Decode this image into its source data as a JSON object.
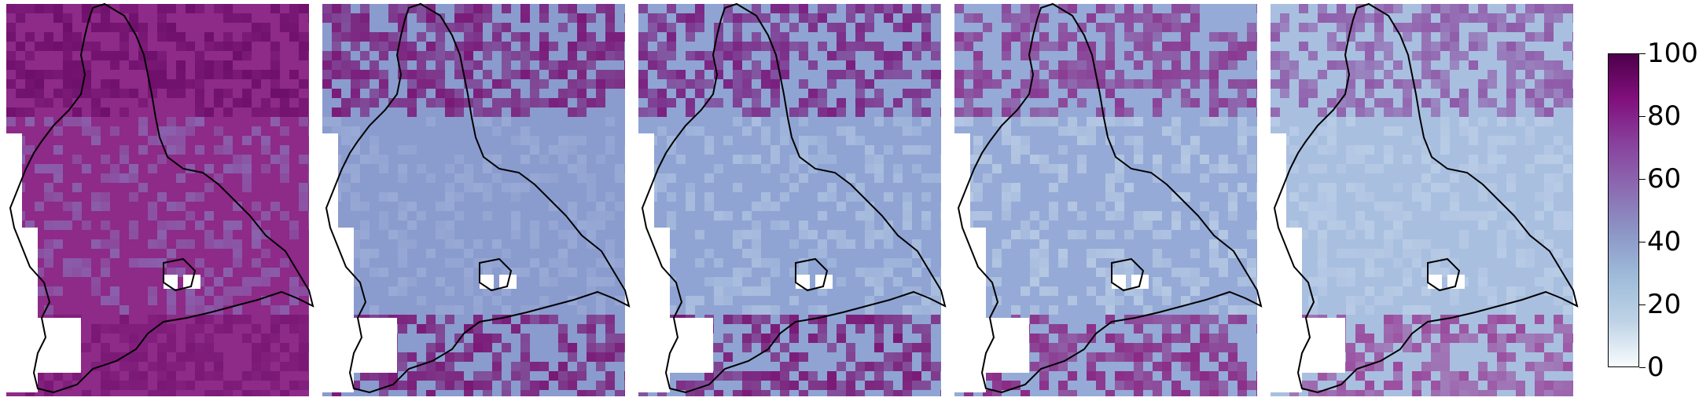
{
  "figure": {
    "panels": [
      {
        "id": "panel-1",
        "base_color": "#8e2a88",
        "north_color": "#6e0f6b",
        "mid_color": "#8a62ad",
        "south_color": "#7a1875"
      },
      {
        "id": "panel-2",
        "base_color": "#8a9bce",
        "north_color": "#7a1a78",
        "mid_color": "#9aaad6",
        "south_color": "#7a1875"
      },
      {
        "id": "panel-3",
        "base_color": "#8fa4d3",
        "north_color": "#7a2080",
        "mid_color": "#a9bede",
        "south_color": "#7a1875"
      },
      {
        "id": "panel-4",
        "base_color": "#95aad6",
        "north_color": "#8a3a92",
        "mid_color": "#b5c8e3",
        "south_color": "#8a2a85"
      },
      {
        "id": "panel-5",
        "base_color": "#a9bfe0",
        "north_color": "#8f5aa8",
        "mid_color": "#b9cce6",
        "south_color": "#9a4a9c"
      }
    ]
  },
  "colorbar": {
    "min": 0,
    "max": 100,
    "ticks": [
      "0",
      "20",
      "40",
      "60",
      "80",
      "100"
    ],
    "colors": [
      "#f7fcfd",
      "#bfd3e6",
      "#9ebcda",
      "#8c96c6",
      "#8c6bb1",
      "#88419d",
      "#810f7c",
      "#4d004b"
    ]
  }
}
